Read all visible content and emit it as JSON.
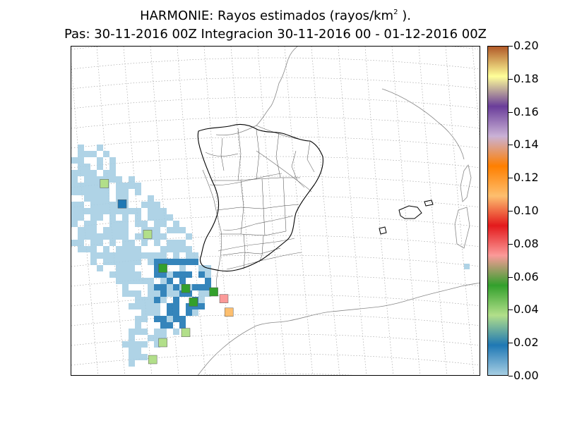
{
  "title": {
    "line1_prefix": "HARMONIE: Rayos estimados  (rayos/km",
    "line1_sup": "2",
    "line1_suffix": " ).",
    "line2": "Pas: 30-11-2016 00Z Integracion 30-11-2016 00 - 01-12-2016 00Z"
  },
  "colorbar": {
    "ticks": [
      "0.00",
      "0.02",
      "0.04",
      "0.06",
      "0.08",
      "0.10",
      "0.12",
      "0.14",
      "0.16",
      "0.18",
      "0.20"
    ],
    "range": [
      0.0,
      0.2
    ],
    "palette": [
      "#a6cee3",
      "#1f78b4",
      "#b2df8a",
      "#33a02c",
      "#fb9a99",
      "#e31a1c",
      "#fdbf6f",
      "#ff7f00",
      "#cab2d6",
      "#6a3d9a",
      "#ffff99",
      "#b15928"
    ]
  },
  "map": {
    "region": "Iberian Peninsula",
    "gridlines": true,
    "field": "estimated lightning density",
    "lightning_cells": [
      {
        "lon": -14.5,
        "lat": 41.0,
        "value": 0.035
      },
      {
        "lon": -13.8,
        "lat": 40.4,
        "value": 0.02
      },
      {
        "lon": -12.8,
        "lat": 39.5,
        "value": 0.045
      },
      {
        "lon": -12.2,
        "lat": 38.5,
        "value": 0.05
      },
      {
        "lon": -11.3,
        "lat": 37.9,
        "value": 0.05
      },
      {
        "lon": -11.0,
        "lat": 37.5,
        "value": 0.055
      },
      {
        "lon": -10.2,
        "lat": 37.8,
        "value": 0.05
      },
      {
        "lon": -9.8,
        "lat": 37.6,
        "value": 0.07
      },
      {
        "lon": -9.6,
        "lat": 37.2,
        "value": 0.11
      },
      {
        "lon": -11.3,
        "lat": 36.6,
        "value": 0.04
      },
      {
        "lon": -12.2,
        "lat": 36.3,
        "value": 0.04
      },
      {
        "lon": -12.6,
        "lat": 35.8,
        "value": 0.035
      }
    ]
  }
}
